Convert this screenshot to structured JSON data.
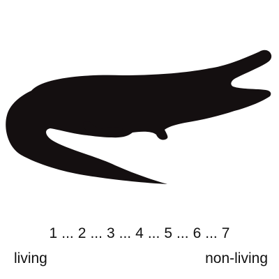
{
  "image": {
    "subject_icon": "crocodile-silhouette-icon",
    "fill_color": "#140f10",
    "background_color": "#ffffff"
  },
  "scale": {
    "separator": "...",
    "points": [
      "1",
      "2",
      "3",
      "4",
      "5",
      "6",
      "7"
    ],
    "left_anchor": "living",
    "right_anchor": "non-living"
  }
}
